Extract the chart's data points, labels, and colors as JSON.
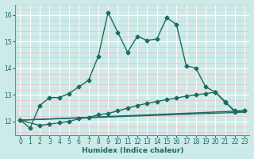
{
  "xlabel": "Humidex (Indice chaleur)",
  "bg_color": "#cceae8",
  "line_color": "#1a6b64",
  "grid_major_color": "#ffffff",
  "grid_minor_color": "#e8c8c8",
  "xlim": [
    -0.5,
    23.5
  ],
  "ylim": [
    11.5,
    16.4
  ],
  "xticks": [
    0,
    1,
    2,
    3,
    4,
    5,
    6,
    7,
    8,
    9,
    10,
    11,
    12,
    13,
    14,
    15,
    16,
    17,
    18,
    19,
    20,
    21,
    22,
    23
  ],
  "yticks": [
    12,
    13,
    14,
    15,
    16
  ],
  "line1_x": [
    0,
    1,
    2,
    3,
    4,
    5,
    6,
    7,
    8,
    9,
    10,
    11,
    12,
    13,
    14,
    15,
    16,
    17,
    18,
    19,
    20,
    21,
    22,
    23
  ],
  "line1_y": [
    12.05,
    11.75,
    12.6,
    12.9,
    12.9,
    13.05,
    13.3,
    13.55,
    14.45,
    16.1,
    15.35,
    14.6,
    15.2,
    15.05,
    15.1,
    15.9,
    15.65,
    14.1,
    14.0,
    13.3,
    13.1,
    12.75,
    12.35,
    12.4
  ],
  "line2_x": [
    0,
    2,
    3,
    4,
    5,
    6,
    7,
    8,
    9,
    10,
    11,
    12,
    13,
    14,
    15,
    16,
    17,
    18,
    19,
    20,
    21,
    22,
    23
  ],
  "line2_y": [
    12.05,
    11.85,
    11.9,
    11.95,
    12.0,
    12.1,
    12.15,
    12.25,
    12.3,
    12.4,
    12.5,
    12.6,
    12.68,
    12.75,
    12.82,
    12.88,
    12.95,
    13.0,
    13.05,
    13.1,
    12.72,
    12.4,
    12.4
  ],
  "line3_x": [
    0,
    23
  ],
  "line3_y": [
    12.05,
    12.4
  ],
  "line4_x": [
    0,
    23
  ],
  "line4_y": [
    12.05,
    12.35
  ],
  "marker_size": 2.5,
  "line_width": 1.0
}
